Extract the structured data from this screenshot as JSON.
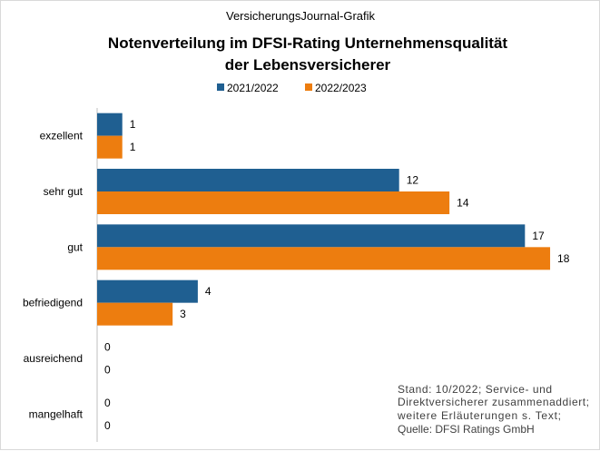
{
  "chart_data": {
    "type": "bar",
    "orientation": "horizontal",
    "source_label": "VersicherungsJournal-Grafik",
    "title_lines": [
      "Notenverteilung im DFSI-Rating Unternehmensqualität",
      "der Lebensversicherer"
    ],
    "categories": [
      "exzellent",
      "sehr gut",
      "gut",
      "befriedigend",
      "ausreichend",
      "mangelhaft"
    ],
    "series": [
      {
        "name": "2021/2022",
        "color": "#1f5f91",
        "values": [
          1,
          12,
          17,
          4,
          0,
          0
        ]
      },
      {
        "name": "2022/2023",
        "color": "#ed7d0f",
        "values": [
          1,
          14,
          18,
          3,
          0,
          0
        ]
      }
    ],
    "xlim": [
      0,
      18.9
    ],
    "legend_position": "top",
    "grid": false,
    "note_lines": [
      "Stand: 10/2022; Service- und",
      "Direktversicherer zusammenaddiert;",
      "weitere Erläuterungen s. Text;",
      "Quelle: DFSI Ratings GmbH"
    ]
  }
}
